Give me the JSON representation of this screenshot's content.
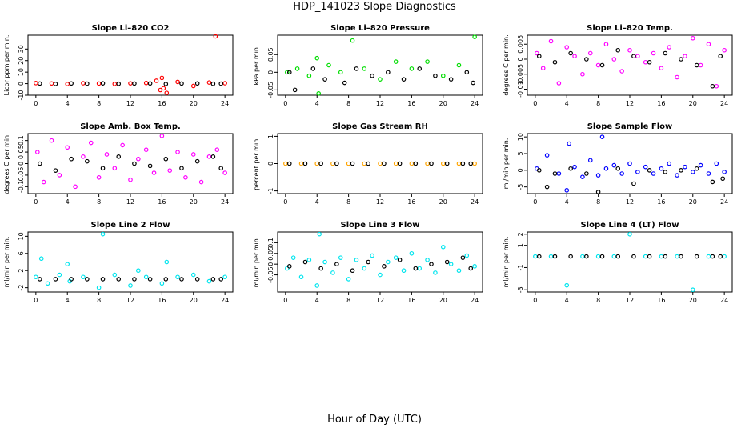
{
  "page": {
    "title": "HDP_141023  Slope Diagnostics",
    "xlabel": "Hour of Day (UTC)"
  },
  "chart_data": [
    {
      "type": "scatter",
      "title": "Slope Li–820 CO2",
      "ylabel": "Licor ppm per min.",
      "xlim": [
        -1,
        25
      ],
      "ylim": [
        -10,
        42
      ],
      "xticks": [
        0,
        4,
        8,
        12,
        16,
        20,
        24
      ],
      "yticks": [
        -10,
        0,
        10,
        20,
        30
      ],
      "series": [
        {
          "color": "#ff0000",
          "x": [
            0.0,
            2.0,
            4.0,
            6.0,
            8.0,
            10.0,
            12.0,
            14.0,
            15.3,
            15.8,
            16.0,
            16.2,
            16.6,
            18.0,
            20.0,
            22.0,
            22.8,
            24.0
          ],
          "y": [
            0.5,
            0.2,
            -0.3,
            0.4,
            0.1,
            -0.2,
            0.3,
            0.6,
            2.5,
            -5.5,
            5.0,
            -4.0,
            -8.0,
            1.5,
            -2.0,
            1.0,
            41.0,
            0.4
          ]
        },
        {
          "color": "#000000",
          "x": [
            0.5,
            2.5,
            4.5,
            6.5,
            8.5,
            10.5,
            12.5,
            14.5,
            16.5,
            18.5,
            20.5,
            22.5,
            23.5
          ],
          "y": [
            0.1,
            -0.2,
            0.2,
            0.0,
            0.3,
            -0.1,
            0.1,
            0.2,
            -0.3,
            0.1,
            0.2,
            -0.1,
            0.0
          ]
        }
      ]
    },
    {
      "type": "scatter",
      "title": "Slope Li–820 Pressure",
      "ylabel": "kPa per min.",
      "xlim": [
        -1,
        25
      ],
      "ylim": [
        -0.065,
        0.105
      ],
      "xticks": [
        0,
        4,
        8,
        12,
        16,
        20,
        24
      ],
      "yticks": [
        -0.05,
        0.0,
        0.05
      ],
      "series": [
        {
          "color": "#00dd00",
          "x": [
            0.2,
            1.5,
            3.0,
            4.0,
            4.2,
            5.5,
            7.0,
            8.5,
            10.0,
            12.0,
            14.0,
            16.0,
            18.0,
            20.0,
            22.0,
            24.0
          ],
          "y": [
            0.0,
            0.01,
            -0.01,
            0.04,
            -0.06,
            0.02,
            0.0,
            0.09,
            0.01,
            -0.02,
            0.03,
            0.01,
            0.03,
            -0.01,
            0.02,
            0.1
          ]
        },
        {
          "color": "#000000",
          "x": [
            0.5,
            1.2,
            3.5,
            5.0,
            7.5,
            9.0,
            11.0,
            13.0,
            15.0,
            17.0,
            19.0,
            21.0,
            23.0,
            23.8
          ],
          "y": [
            0.0,
            -0.05,
            0.01,
            -0.02,
            -0.03,
            0.01,
            -0.01,
            0.0,
            -0.02,
            0.01,
            -0.01,
            -0.02,
            0.0,
            -0.03
          ]
        }
      ]
    },
    {
      "type": "scatter",
      "title": "Slope Li–820 Temp.",
      "ylabel": "degrees C per min.",
      "xlim": [
        -1,
        25
      ],
      "ylim": [
        -0.012,
        0.008
      ],
      "xticks": [
        0,
        4,
        8,
        12,
        16,
        20,
        24
      ],
      "yticks": [
        -0.01,
        -0.005,
        0.0,
        0.005
      ],
      "series": [
        {
          "color": "#ff00ff",
          "x": [
            0.2,
            1.0,
            2.0,
            3.0,
            4.0,
            5.0,
            6.0,
            7.0,
            8.0,
            9.0,
            10.0,
            11.0,
            12.0,
            13.0,
            14.0,
            15.0,
            16.0,
            17.0,
            18.0,
            19.0,
            20.0,
            21.0,
            22.0,
            23.0,
            24.0
          ],
          "y": [
            0.002,
            -0.003,
            0.006,
            -0.008,
            0.004,
            0.001,
            -0.005,
            0.002,
            -0.002,
            0.005,
            0.0,
            -0.004,
            0.003,
            0.001,
            -0.001,
            0.002,
            -0.003,
            0.004,
            -0.006,
            0.001,
            0.007,
            -0.002,
            0.005,
            -0.009,
            0.003
          ]
        },
        {
          "color": "#000000",
          "x": [
            0.5,
            2.5,
            4.5,
            6.5,
            8.5,
            10.5,
            12.5,
            14.5,
            16.5,
            18.5,
            20.5,
            22.5,
            23.5
          ],
          "y": [
            0.001,
            -0.001,
            0.002,
            0.0,
            -0.002,
            0.003,
            0.001,
            -0.001,
            0.002,
            0.0,
            -0.002,
            -0.009,
            0.001
          ]
        }
      ]
    },
    {
      "type": "scatter",
      "title": "Slope Amb. Box Temp.",
      "ylabel": "degrees C per min.",
      "xlim": [
        -1,
        25
      ],
      "ylim": [
        -0.13,
        0.13
      ],
      "xticks": [
        0,
        4,
        8,
        12,
        16,
        20,
        24
      ],
      "yticks": [
        -0.1,
        -0.05,
        0.0,
        0.05,
        0.1
      ],
      "series": [
        {
          "color": "#ff00ff",
          "x": [
            0.2,
            1.0,
            2.0,
            3.0,
            4.0,
            5.0,
            6.0,
            7.0,
            8.0,
            9.0,
            10.0,
            11.0,
            12.0,
            13.0,
            14.0,
            15.0,
            16.0,
            17.0,
            18.0,
            19.0,
            20.0,
            21.0,
            22.0,
            23.0,
            24.0
          ],
          "y": [
            0.05,
            -0.08,
            0.1,
            -0.05,
            0.07,
            -0.1,
            0.03,
            0.09,
            -0.06,
            0.04,
            -0.02,
            0.08,
            -0.07,
            0.02,
            0.06,
            -0.04,
            0.12,
            -0.03,
            0.05,
            -0.06,
            0.04,
            -0.08,
            0.03,
            0.06,
            -0.04
          ]
        },
        {
          "color": "#000000",
          "x": [
            0.5,
            2.5,
            4.5,
            6.5,
            8.5,
            10.5,
            12.5,
            14.5,
            16.5,
            18.5,
            20.5,
            22.5,
            23.5
          ],
          "y": [
            0.0,
            -0.03,
            0.02,
            0.01,
            -0.02,
            0.03,
            0.0,
            -0.01,
            0.02,
            -0.02,
            0.01,
            0.03,
            -0.02
          ]
        }
      ]
    },
    {
      "type": "scatter",
      "title": "Slope Gas Stream RH",
      "ylabel": "percent per min.",
      "xlim": [
        -1,
        25
      ],
      "ylim": [
        -1.1,
        1.1
      ],
      "xticks": [
        0,
        4,
        8,
        12,
        16,
        20,
        24
      ],
      "yticks": [
        -1.0,
        0.0,
        1.0
      ],
      "series": [
        {
          "color": "#ffa500",
          "x": [
            0.0,
            2.0,
            4.0,
            6.0,
            8.0,
            10.0,
            12.0,
            14.0,
            16.0,
            18.0,
            20.0,
            22.0,
            24.0
          ],
          "y": [
            0,
            0,
            0,
            0,
            0,
            0,
            0,
            0,
            0,
            0,
            0,
            0,
            0
          ]
        },
        {
          "color": "#000000",
          "x": [
            0.5,
            2.5,
            4.5,
            6.5,
            8.5,
            10.5,
            12.5,
            14.5,
            16.5,
            18.5,
            20.5,
            22.5,
            23.5
          ],
          "y": [
            0,
            0,
            0,
            0,
            0,
            0,
            0,
            0,
            0,
            0,
            0,
            0,
            0
          ]
        }
      ]
    },
    {
      "type": "scatter",
      "title": "Slope Sample Flow",
      "ylabel": "ml/min per min.",
      "xlim": [
        -1,
        25
      ],
      "ylim": [
        -7,
        11
      ],
      "xticks": [
        0,
        4,
        8,
        12,
        16,
        20,
        24
      ],
      "yticks": [
        -5,
        0,
        5,
        10
      ],
      "series": [
        {
          "color": "#0000ff",
          "x": [
            0.2,
            1.5,
            3.0,
            4.0,
            4.3,
            5.0,
            6.0,
            7.0,
            8.0,
            8.5,
            9.0,
            10.0,
            11.0,
            12.0,
            13.0,
            14.0,
            15.0,
            16.0,
            17.0,
            18.0,
            19.0,
            20.0,
            21.0,
            22.0,
            23.0,
            24.0
          ],
          "y": [
            0.5,
            4.5,
            -1.0,
            -6.0,
            8.0,
            1.0,
            -2.0,
            3.0,
            -1.5,
            10.0,
            0.5,
            1.5,
            -1.0,
            2.0,
            -0.5,
            1.0,
            -1.0,
            0.5,
            2.0,
            -1.5,
            1.0,
            -0.5,
            1.5,
            -1.0,
            2.0,
            -0.5
          ]
        },
        {
          "color": "#000000",
          "x": [
            0.5,
            1.5,
            2.5,
            4.5,
            6.5,
            8.0,
            10.5,
            12.5,
            14.5,
            16.5,
            18.5,
            20.5,
            22.5,
            23.8
          ],
          "y": [
            0.0,
            -5.0,
            -1.0,
            0.5,
            -1.0,
            -6.5,
            0.5,
            -4.0,
            0.0,
            -0.5,
            0.0,
            0.5,
            -3.5,
            -2.5
          ]
        }
      ]
    },
    {
      "type": "scatter",
      "title": "Slope Line 2 Flow",
      "ylabel": "ml/min per min.",
      "xlim": [
        -1,
        25
      ],
      "ylim": [
        -3,
        11
      ],
      "xticks": [
        0,
        4,
        8,
        12,
        16,
        20,
        24
      ],
      "yticks": [
        -2,
        2,
        6,
        10
      ],
      "series": [
        {
          "color": "#00e5ee",
          "x": [
            0.0,
            0.7,
            1.5,
            3.0,
            4.0,
            4.3,
            6.0,
            8.0,
            8.5,
            10.0,
            12.0,
            13.0,
            14.0,
            16.0,
            16.6,
            18.0,
            20.0,
            22.0,
            24.0
          ],
          "y": [
            0.5,
            4.8,
            -1.0,
            1.0,
            3.5,
            -0.5,
            0.5,
            -2.0,
            10.5,
            1.0,
            -1.5,
            2.0,
            0.5,
            -1.0,
            4.0,
            0.5,
            1.0,
            -0.5,
            0.5
          ]
        },
        {
          "color": "#000000",
          "x": [
            0.5,
            2.5,
            4.5,
            6.5,
            8.5,
            10.5,
            12.5,
            14.5,
            16.5,
            18.5,
            20.5,
            22.5,
            23.5
          ],
          "y": [
            0,
            0,
            0,
            0,
            0,
            0,
            0,
            0,
            0,
            0,
            0,
            0,
            0
          ]
        }
      ]
    },
    {
      "type": "scatter",
      "title": "Slope Line 3 Flow",
      "ylabel": "ml/min per min.",
      "xlim": [
        -1,
        25
      ],
      "ylim": [
        -0.13,
        0.15
      ],
      "xticks": [
        0,
        4,
        8,
        12,
        16,
        20,
        24
      ],
      "yticks": [
        -0.05,
        0.0,
        0.05,
        0.1
      ],
      "series": [
        {
          "color": "#00e5ee",
          "x": [
            0.2,
            1.0,
            2.0,
            3.0,
            4.0,
            4.3,
            5.0,
            6.0,
            7.0,
            8.0,
            9.0,
            10.0,
            11.0,
            12.0,
            13.0,
            14.0,
            15.0,
            16.0,
            17.0,
            18.0,
            19.0,
            20.0,
            21.0,
            22.0,
            23.0,
            24.0
          ],
          "y": [
            -0.02,
            0.03,
            -0.06,
            0.02,
            -0.1,
            0.14,
            0.01,
            -0.04,
            0.03,
            -0.07,
            0.02,
            -0.02,
            0.04,
            -0.05,
            0.01,
            0.03,
            -0.03,
            0.05,
            -0.02,
            0.02,
            -0.04,
            0.08,
            0.0,
            -0.03,
            0.04,
            -0.01
          ]
        },
        {
          "color": "#000000",
          "x": [
            0.5,
            2.5,
            4.5,
            6.5,
            8.5,
            10.5,
            12.5,
            14.5,
            16.5,
            18.5,
            20.5,
            22.5,
            23.5
          ],
          "y": [
            -0.01,
            0.01,
            -0.02,
            0.0,
            -0.03,
            0.01,
            -0.01,
            0.02,
            -0.02,
            0.0,
            0.01,
            0.03,
            -0.02
          ]
        }
      ]
    },
    {
      "type": "scatter",
      "title": "Slope Line 4 (LT) Flow",
      "ylabel": "ml/min per min.",
      "xlim": [
        -1,
        25
      ],
      "ylim": [
        -3.2,
        2.2
      ],
      "xticks": [
        0,
        4,
        8,
        12,
        16,
        20,
        24
      ],
      "yticks": [
        -3,
        -1,
        1,
        2
      ],
      "series": [
        {
          "color": "#00e5ee",
          "x": [
            0.0,
            2.0,
            4.0,
            6.0,
            8.0,
            10.0,
            12.0,
            14.0,
            16.0,
            18.0,
            20.0,
            22.0,
            24.0
          ],
          "y": [
            0,
            0,
            -2.6,
            0,
            0,
            0,
            2.0,
            0,
            0,
            0,
            -3.0,
            0,
            0
          ]
        },
        {
          "color": "#000000",
          "x": [
            0.5,
            2.5,
            4.5,
            6.5,
            8.5,
            10.5,
            12.5,
            14.5,
            16.5,
            18.5,
            20.5,
            22.5,
            23.5
          ],
          "y": [
            0,
            0,
            0,
            0,
            0,
            0,
            0,
            0,
            0,
            0,
            0,
            0,
            0
          ]
        }
      ]
    }
  ]
}
